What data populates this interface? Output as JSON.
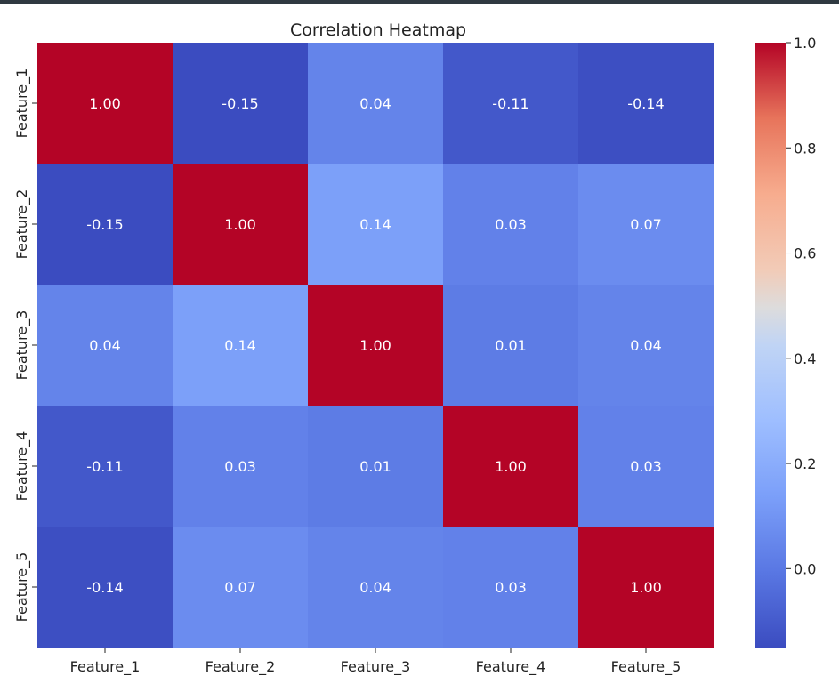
{
  "chart_data": {
    "type": "heatmap",
    "title": "Correlation Heatmap",
    "x_categories": [
      "Feature_1",
      "Feature_2",
      "Feature_3",
      "Feature_4",
      "Feature_5"
    ],
    "y_categories": [
      "Feature_1",
      "Feature_2",
      "Feature_3",
      "Feature_4",
      "Feature_5"
    ],
    "values": [
      [
        1.0,
        -0.15,
        0.04,
        -0.11,
        -0.14
      ],
      [
        -0.15,
        1.0,
        0.14,
        0.03,
        0.07
      ],
      [
        0.04,
        0.14,
        1.0,
        0.01,
        0.04
      ],
      [
        -0.11,
        0.03,
        0.01,
        1.0,
        0.03
      ],
      [
        -0.14,
        0.07,
        0.04,
        0.03,
        1.0
      ]
    ],
    "annotation_format": "0.00",
    "colormap": "coolwarm",
    "vmin": -0.15,
    "vmax": 1.0,
    "colorbar_ticks": [
      "0.0",
      "0.2",
      "0.4",
      "0.6",
      "0.8",
      "1.0"
    ],
    "colorbar_tick_values": [
      0.0,
      0.2,
      0.4,
      0.6,
      0.8,
      1.0
    ]
  }
}
